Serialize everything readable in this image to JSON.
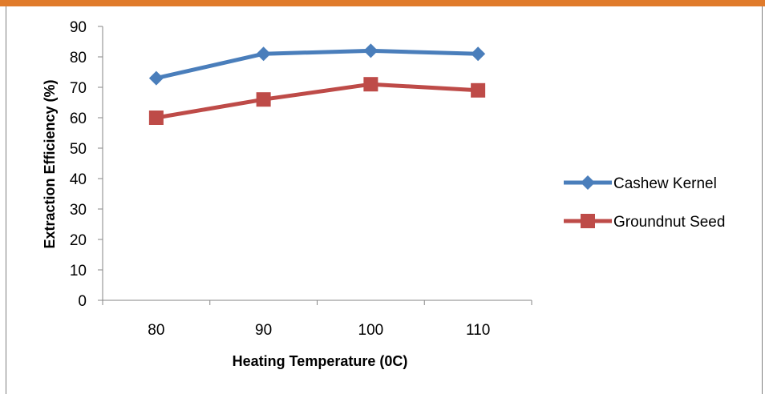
{
  "colors": {
    "top_bar": "#e07b2b",
    "frame": "#7f7f7f",
    "axis": "#868686"
  },
  "chart_data": {
    "type": "line",
    "title": "",
    "xlabel": "Heating Temperature (0C)",
    "ylabel": "Extraction Efficiency (%)",
    "categories": [
      "80",
      "90",
      "100",
      "110"
    ],
    "ylim": [
      0,
      90
    ],
    "yticks": [
      "0",
      "10",
      "20",
      "30",
      "40",
      "50",
      "60",
      "70",
      "80",
      "90"
    ],
    "grid": false,
    "legend_position": "right",
    "series": [
      {
        "name": "Cashew Kernel",
        "values": [
          73,
          81,
          82,
          81
        ],
        "color": "#4a7ebb",
        "marker": "diamond"
      },
      {
        "name": "Groundnut Seed",
        "values": [
          60,
          66,
          71,
          69
        ],
        "color": "#be4b48",
        "marker": "square"
      }
    ]
  }
}
